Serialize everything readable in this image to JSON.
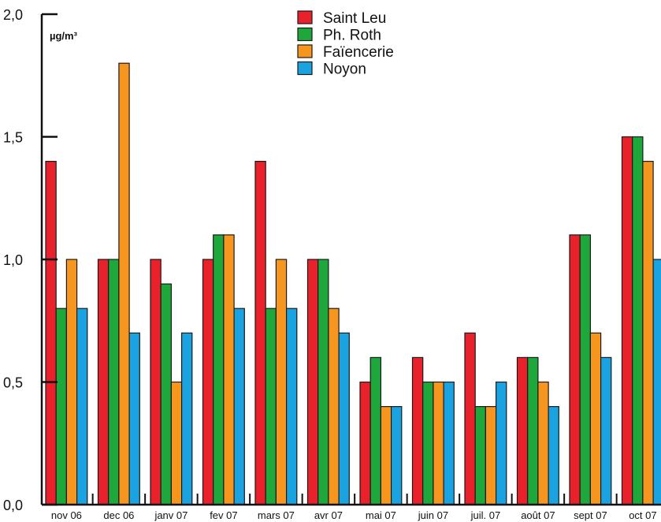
{
  "chart_data": {
    "type": "bar",
    "title": "",
    "xlabel": "",
    "ylabel": "µg/m³",
    "ylim": [
      0,
      2.0
    ],
    "yticks": [
      "0,0",
      "0,5",
      "1,0",
      "1,5",
      "2,0"
    ],
    "ytick_values": [
      0,
      0.5,
      1.0,
      1.5,
      2.0
    ],
    "grid": false,
    "legend_position": "top-center",
    "categories": [
      "nov 06",
      "dec 06",
      "janv 07",
      "fev 07",
      "mars 07",
      "avr 07",
      "mai 07",
      "juin 07",
      "juil. 07",
      "août 07",
      "sept 07",
      "oct 07"
    ],
    "series": [
      {
        "name": "Saint Leu",
        "color": "#e8212b",
        "values": [
          1.4,
          1.0,
          1.0,
          1.0,
          1.4,
          1.0,
          0.5,
          0.6,
          0.7,
          0.6,
          1.1,
          1.5
        ]
      },
      {
        "name": "Ph. Roth",
        "color": "#1ea83c",
        "values": [
          0.8,
          1.0,
          0.9,
          1.1,
          0.8,
          1.0,
          0.6,
          0.5,
          0.4,
          0.6,
          1.1,
          1.5
        ]
      },
      {
        "name": "Faïencerie",
        "color": "#f7961e",
        "values": [
          1.0,
          1.8,
          0.5,
          1.1,
          1.0,
          0.8,
          0.4,
          0.5,
          0.4,
          0.5,
          0.7,
          1.4
        ]
      },
      {
        "name": "Noyon",
        "color": "#1aa3e0",
        "values": [
          0.8,
          0.7,
          0.7,
          0.8,
          0.8,
          0.7,
          0.4,
          0.5,
          0.5,
          0.4,
          0.6,
          1.0
        ]
      }
    ]
  }
}
